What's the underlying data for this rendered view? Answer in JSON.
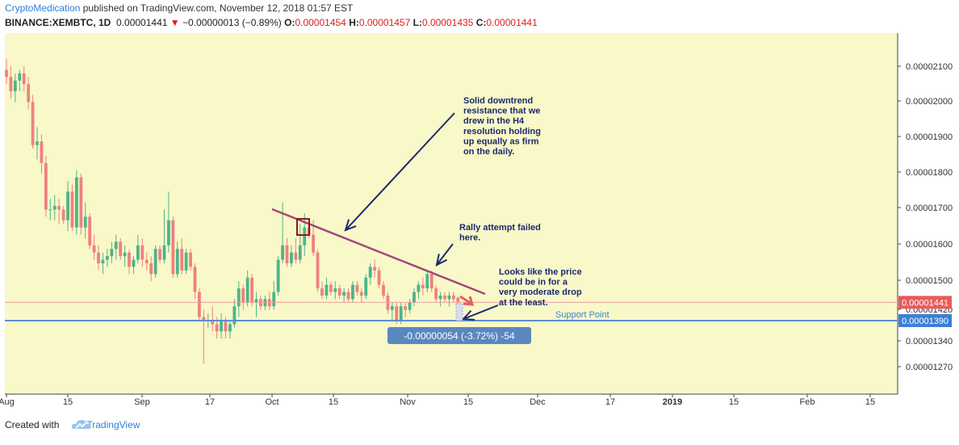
{
  "header": {
    "author": "CryptoMedication",
    "published": " published on TradingView.com, November 12, 2018 01:57 EST",
    "symbol": "BINANCE:XEMBTC, 1D",
    "last": "0.00001441",
    "change": "−0.00000013 (−0.89%)",
    "o_label": "O:",
    "o_value": "0.00001454",
    "h_label": "H:",
    "h_value": "0.00001457",
    "l_label": "L:",
    "l_value": "0.00001435",
    "c_label": "C:",
    "c_value": "0.00001441"
  },
  "footer": {
    "created_with": "Created with",
    "brand": "TradingView"
  },
  "colors": {
    "background": "#f8f8c8",
    "up": "#4fb38a",
    "down": "#f08080",
    "trendline": "#a04a78",
    "support": "#5a8fd0",
    "annotation": "#1a2a6e",
    "price_tag": "#e85b5b",
    "support_tag": "#3d7fd4",
    "measure_box": "#5b87c0"
  },
  "chart_data": {
    "type": "candlestick",
    "x_ticks": [
      "Aug",
      "15",
      "Sep",
      "17",
      "Oct",
      "15",
      "Nov",
      "15",
      "Dec",
      "17",
      "2019",
      "15",
      "Feb",
      "15"
    ],
    "y_ticks": [
      "0.00002100",
      "0.00002000",
      "0.00001900",
      "0.00001800",
      "0.00001700",
      "0.00001600",
      "0.00001500",
      "0.00001420",
      "0.00001340",
      "0.00001270"
    ],
    "ylim": [
      1.23e-05,
      2.19e-05
    ],
    "candles": [
      {
        "d": "2018-08-01",
        "o": 2.09e-05,
        "h": 2.12e-05,
        "l": 2.05e-05,
        "c": 2.07e-05
      },
      {
        "d": "2018-08-02",
        "o": 2.07e-05,
        "h": 2.1e-05,
        "l": 2.01e-05,
        "c": 2.03e-05
      },
      {
        "d": "2018-08-03",
        "o": 2.03e-05,
        "h": 2.08e-05,
        "l": 2e-05,
        "c": 2.06e-05
      },
      {
        "d": "2018-08-04",
        "o": 2.06e-05,
        "h": 2.09e-05,
        "l": 2.03e-05,
        "c": 2.08e-05
      },
      {
        "d": "2018-08-05",
        "o": 2.08e-05,
        "h": 2.1e-05,
        "l": 2.03e-05,
        "c": 2.05e-05
      },
      {
        "d": "2018-08-06",
        "o": 2.05e-05,
        "h": 2.07e-05,
        "l": 1.98e-05,
        "c": 2e-05
      },
      {
        "d": "2018-08-07",
        "o": 2e-05,
        "h": 2.02e-05,
        "l": 1.87e-05,
        "c": 1.88e-05
      },
      {
        "d": "2018-08-08",
        "o": 1.88e-05,
        "h": 1.93e-05,
        "l": 1.84e-05,
        "c": 1.89e-05
      },
      {
        "d": "2018-08-09",
        "o": 1.89e-05,
        "h": 1.91e-05,
        "l": 1.8e-05,
        "c": 1.83e-05
      },
      {
        "d": "2018-08-10",
        "o": 1.83e-05,
        "h": 1.85e-05,
        "l": 1.68e-05,
        "c": 1.7e-05
      },
      {
        "d": "2018-08-11",
        "o": 1.7e-05,
        "h": 1.73e-05,
        "l": 1.67e-05,
        "c": 1.7e-05
      },
      {
        "d": "2018-08-12",
        "o": 1.7e-05,
        "h": 1.74e-05,
        "l": 1.67e-05,
        "c": 1.71e-05
      },
      {
        "d": "2018-08-13",
        "o": 1.71e-05,
        "h": 1.73e-05,
        "l": 1.66e-05,
        "c": 1.7e-05
      },
      {
        "d": "2018-08-14",
        "o": 1.7e-05,
        "h": 1.71e-05,
        "l": 1.66e-05,
        "c": 1.67e-05
      },
      {
        "d": "2018-08-15",
        "o": 1.67e-05,
        "h": 1.78e-05,
        "l": 1.64e-05,
        "c": 1.75e-05
      },
      {
        "d": "2018-08-16",
        "o": 1.75e-05,
        "h": 1.77e-05,
        "l": 1.64e-05,
        "c": 1.65e-05
      },
      {
        "d": "2018-08-17",
        "o": 1.65e-05,
        "h": 1.81e-05,
        "l": 1.63e-05,
        "c": 1.79e-05
      },
      {
        "d": "2018-08-18",
        "o": 1.79e-05,
        "h": 1.8e-05,
        "l": 1.63e-05,
        "c": 1.65e-05
      },
      {
        "d": "2018-08-19",
        "o": 1.65e-05,
        "h": 1.72e-05,
        "l": 1.62e-05,
        "c": 1.68e-05
      },
      {
        "d": "2018-08-20",
        "o": 1.68e-05,
        "h": 1.69e-05,
        "l": 1.59e-05,
        "c": 1.6e-05
      },
      {
        "d": "2018-08-21",
        "o": 1.6e-05,
        "h": 1.63e-05,
        "l": 1.56e-05,
        "c": 1.58e-05
      },
      {
        "d": "2018-08-22",
        "o": 1.58e-05,
        "h": 1.6e-05,
        "l": 1.53e-05,
        "c": 1.55e-05
      },
      {
        "d": "2018-08-23",
        "o": 1.55e-05,
        "h": 1.58e-05,
        "l": 1.52e-05,
        "c": 1.56e-05
      },
      {
        "d": "2018-08-24",
        "o": 1.56e-05,
        "h": 1.59e-05,
        "l": 1.54e-05,
        "c": 1.57e-05
      },
      {
        "d": "2018-08-25",
        "o": 1.57e-05,
        "h": 1.61e-05,
        "l": 1.55e-05,
        "c": 1.59e-05
      },
      {
        "d": "2018-08-26",
        "o": 1.59e-05,
        "h": 1.63e-05,
        "l": 1.56e-05,
        "c": 1.61e-05
      },
      {
        "d": "2018-08-27",
        "o": 1.61e-05,
        "h": 1.62e-05,
        "l": 1.56e-05,
        "c": 1.57e-05
      },
      {
        "d": "2018-08-28",
        "o": 1.57e-05,
        "h": 1.6e-05,
        "l": 1.54e-05,
        "c": 1.58e-05
      },
      {
        "d": "2018-08-29",
        "o": 1.58e-05,
        "h": 1.59e-05,
        "l": 1.52e-05,
        "c": 1.54e-05
      },
      {
        "d": "2018-08-30",
        "o": 1.54e-05,
        "h": 1.57e-05,
        "l": 1.52e-05,
        "c": 1.56e-05
      },
      {
        "d": "2018-08-31",
        "o": 1.56e-05,
        "h": 1.63e-05,
        "l": 1.55e-05,
        "c": 1.6e-05
      },
      {
        "d": "2018-09-01",
        "o": 1.6e-05,
        "h": 1.62e-05,
        "l": 1.54e-05,
        "c": 1.56e-05
      },
      {
        "d": "2018-09-02",
        "o": 1.56e-05,
        "h": 1.58e-05,
        "l": 1.53e-05,
        "c": 1.55e-05
      },
      {
        "d": "2018-09-03",
        "o": 1.55e-05,
        "h": 1.57e-05,
        "l": 1.5e-05,
        "c": 1.52e-05
      },
      {
        "d": "2018-09-04",
        "o": 1.52e-05,
        "h": 1.6e-05,
        "l": 1.51e-05,
        "c": 1.59e-05
      },
      {
        "d": "2018-09-05",
        "o": 1.59e-05,
        "h": 1.6e-05,
        "l": 1.55e-05,
        "c": 1.56e-05
      },
      {
        "d": "2018-09-06",
        "o": 1.56e-05,
        "h": 1.7e-05,
        "l": 1.55e-05,
        "c": 1.6e-05
      },
      {
        "d": "2018-09-07",
        "o": 1.6e-05,
        "h": 1.75e-05,
        "l": 1.58e-05,
        "c": 1.67e-05
      },
      {
        "d": "2018-09-08",
        "o": 1.67e-05,
        "h": 1.68e-05,
        "l": 1.51e-05,
        "c": 1.52e-05
      },
      {
        "d": "2018-09-09",
        "o": 1.52e-05,
        "h": 1.61e-05,
        "l": 1.51e-05,
        "c": 1.59e-05
      },
      {
        "d": "2018-09-10",
        "o": 1.59e-05,
        "h": 1.62e-05,
        "l": 1.52e-05,
        "c": 1.53e-05
      },
      {
        "d": "2018-09-11",
        "o": 1.53e-05,
        "h": 1.59e-05,
        "l": 1.52e-05,
        "c": 1.58e-05
      },
      {
        "d": "2018-09-12",
        "o": 1.58e-05,
        "h": 1.59e-05,
        "l": 1.53e-05,
        "c": 1.54e-05
      },
      {
        "d": "2018-09-13",
        "o": 1.54e-05,
        "h": 1.55e-05,
        "l": 1.45e-05,
        "c": 1.47e-05
      },
      {
        "d": "2018-09-14",
        "o": 1.47e-05,
        "h": 1.48e-05,
        "l": 1.39e-05,
        "c": 1.4e-05
      },
      {
        "d": "2018-09-15",
        "o": 1.4e-05,
        "h": 1.42e-05,
        "l": 1.27e-05,
        "c": 1.39e-05
      },
      {
        "d": "2018-09-16",
        "o": 1.39e-05,
        "h": 1.41e-05,
        "l": 1.37e-05,
        "c": 1.39e-05
      },
      {
        "d": "2018-09-17",
        "o": 1.39e-05,
        "h": 1.43e-05,
        "l": 1.36e-05,
        "c": 1.38e-05
      },
      {
        "d": "2018-09-18",
        "o": 1.38e-05,
        "h": 1.4e-05,
        "l": 1.34e-05,
        "c": 1.36e-05
      },
      {
        "d": "2018-09-19",
        "o": 1.36e-05,
        "h": 1.41e-05,
        "l": 1.34e-05,
        "c": 1.39e-05
      },
      {
        "d": "2018-09-20",
        "o": 1.39e-05,
        "h": 1.4e-05,
        "l": 1.34e-05,
        "c": 1.36e-05
      },
      {
        "d": "2018-09-21",
        "o": 1.36e-05,
        "h": 1.39e-05,
        "l": 1.34e-05,
        "c": 1.38e-05
      },
      {
        "d": "2018-09-22",
        "o": 1.38e-05,
        "h": 1.45e-05,
        "l": 1.37e-05,
        "c": 1.43e-05
      },
      {
        "d": "2018-09-23",
        "o": 1.43e-05,
        "h": 1.5e-05,
        "l": 1.4e-05,
        "c": 1.48e-05
      },
      {
        "d": "2018-09-24",
        "o": 1.48e-05,
        "h": 1.49e-05,
        "l": 1.42e-05,
        "c": 1.44e-05
      },
      {
        "d": "2018-09-25",
        "o": 1.44e-05,
        "h": 1.53e-05,
        "l": 1.43e-05,
        "c": 1.51e-05
      },
      {
        "d": "2018-09-26",
        "o": 1.51e-05,
        "h": 1.52e-05,
        "l": 1.43e-05,
        "c": 1.44e-05
      },
      {
        "d": "2018-09-27",
        "o": 1.44e-05,
        "h": 1.47e-05,
        "l": 1.4e-05,
        "c": 1.45e-05
      },
      {
        "d": "2018-09-28",
        "o": 1.45e-05,
        "h": 1.46e-05,
        "l": 1.42e-05,
        "c": 1.43e-05
      },
      {
        "d": "2018-09-29",
        "o": 1.43e-05,
        "h": 1.46e-05,
        "l": 1.42e-05,
        "c": 1.45e-05
      },
      {
        "d": "2018-09-30",
        "o": 1.45e-05,
        "h": 1.47e-05,
        "l": 1.42e-05,
        "c": 1.43e-05
      },
      {
        "d": "2018-10-01",
        "o": 1.43e-05,
        "h": 1.5e-05,
        "l": 1.42e-05,
        "c": 1.47e-05
      },
      {
        "d": "2018-10-02",
        "o": 1.47e-05,
        "h": 1.57e-05,
        "l": 1.46e-05,
        "c": 1.56e-05
      },
      {
        "d": "2018-10-03",
        "o": 1.56e-05,
        "h": 1.72e-05,
        "l": 1.55e-05,
        "c": 1.6e-05
      },
      {
        "d": "2018-10-04",
        "o": 1.6e-05,
        "h": 1.62e-05,
        "l": 1.54e-05,
        "c": 1.55e-05
      },
      {
        "d": "2018-10-05",
        "o": 1.55e-05,
        "h": 1.6e-05,
        "l": 1.54e-05,
        "c": 1.58e-05
      },
      {
        "d": "2018-10-06",
        "o": 1.58e-05,
        "h": 1.62e-05,
        "l": 1.55e-05,
        "c": 1.56e-05
      },
      {
        "d": "2018-10-07",
        "o": 1.56e-05,
        "h": 1.66e-05,
        "l": 1.55e-05,
        "c": 1.6e-05
      },
      {
        "d": "2018-10-08",
        "o": 1.6e-05,
        "h": 1.69e-05,
        "l": 1.57e-05,
        "c": 1.65e-05
      },
      {
        "d": "2018-10-09",
        "o": 1.65e-05,
        "h": 1.67e-05,
        "l": 1.62e-05,
        "c": 1.63e-05
      },
      {
        "d": "2018-10-10",
        "o": 1.63e-05,
        "h": 1.67e-05,
        "l": 1.57e-05,
        "c": 1.58e-05
      },
      {
        "d": "2018-10-11",
        "o": 1.58e-05,
        "h": 1.59e-05,
        "l": 1.47e-05,
        "c": 1.48e-05
      },
      {
        "d": "2018-10-12",
        "o": 1.48e-05,
        "h": 1.5e-05,
        "l": 1.45e-05,
        "c": 1.46e-05
      },
      {
        "d": "2018-10-13",
        "o": 1.46e-05,
        "h": 1.51e-05,
        "l": 1.45e-05,
        "c": 1.49e-05
      },
      {
        "d": "2018-10-14",
        "o": 1.49e-05,
        "h": 1.5e-05,
        "l": 1.46e-05,
        "c": 1.47e-05
      },
      {
        "d": "2018-10-15",
        "o": 1.47e-05,
        "h": 1.5e-05,
        "l": 1.45e-05,
        "c": 1.48e-05
      },
      {
        "d": "2018-10-16",
        "o": 1.48e-05,
        "h": 1.49e-05,
        "l": 1.45e-05,
        "c": 1.46e-05
      },
      {
        "d": "2018-10-17",
        "o": 1.46e-05,
        "h": 1.48e-05,
        "l": 1.44e-05,
        "c": 1.47e-05
      },
      {
        "d": "2018-10-18",
        "o": 1.47e-05,
        "h": 1.48e-05,
        "l": 1.44e-05,
        "c": 1.45e-05
      },
      {
        "d": "2018-10-19",
        "o": 1.45e-05,
        "h": 1.5e-05,
        "l": 1.44e-05,
        "c": 1.49e-05
      },
      {
        "d": "2018-10-20",
        "o": 1.49e-05,
        "h": 1.5e-05,
        "l": 1.46e-05,
        "c": 1.47e-05
      },
      {
        "d": "2018-10-21",
        "o": 1.47e-05,
        "h": 1.48e-05,
        "l": 1.44e-05,
        "c": 1.46e-05
      },
      {
        "d": "2018-10-22",
        "o": 1.46e-05,
        "h": 1.52e-05,
        "l": 1.45e-05,
        "c": 1.51e-05
      },
      {
        "d": "2018-10-23",
        "o": 1.51e-05,
        "h": 1.55e-05,
        "l": 1.49e-05,
        "c": 1.54e-05
      },
      {
        "d": "2018-10-24",
        "o": 1.54e-05,
        "h": 1.56e-05,
        "l": 1.51e-05,
        "c": 1.53e-05
      },
      {
        "d": "2018-10-25",
        "o": 1.53e-05,
        "h": 1.54e-05,
        "l": 1.48e-05,
        "c": 1.49e-05
      },
      {
        "d": "2018-10-26",
        "o": 1.49e-05,
        "h": 1.5e-05,
        "l": 1.45e-05,
        "c": 1.46e-05
      },
      {
        "d": "2018-10-27",
        "o": 1.46e-05,
        "h": 1.47e-05,
        "l": 1.41e-05,
        "c": 1.42e-05
      },
      {
        "d": "2018-10-28",
        "o": 1.42e-05,
        "h": 1.44e-05,
        "l": 1.39e-05,
        "c": 1.43e-05
      },
      {
        "d": "2018-10-29",
        "o": 1.43e-05,
        "h": 1.44e-05,
        "l": 1.38e-05,
        "c": 1.39e-05
      },
      {
        "d": "2018-10-30",
        "o": 1.39e-05,
        "h": 1.44e-05,
        "l": 1.38e-05,
        "c": 1.43e-05
      },
      {
        "d": "2018-10-31",
        "o": 1.43e-05,
        "h": 1.44e-05,
        "l": 1.4e-05,
        "c": 1.42e-05
      },
      {
        "d": "2018-11-01",
        "o": 1.42e-05,
        "h": 1.45e-05,
        "l": 1.41e-05,
        "c": 1.44e-05
      },
      {
        "d": "2018-11-02",
        "o": 1.44e-05,
        "h": 1.48e-05,
        "l": 1.43e-05,
        "c": 1.47e-05
      },
      {
        "d": "2018-11-03",
        "o": 1.47e-05,
        "h": 1.5e-05,
        "l": 1.45e-05,
        "c": 1.49e-05
      },
      {
        "d": "2018-11-04",
        "o": 1.49e-05,
        "h": 1.51e-05,
        "l": 1.46e-05,
        "c": 1.48e-05
      },
      {
        "d": "2018-11-05",
        "o": 1.48e-05,
        "h": 1.53e-05,
        "l": 1.47e-05,
        "c": 1.52e-05
      },
      {
        "d": "2018-11-06",
        "o": 1.52e-05,
        "h": 1.53e-05,
        "l": 1.47e-05,
        "c": 1.48e-05
      },
      {
        "d": "2018-11-07",
        "o": 1.48e-05,
        "h": 1.49e-05,
        "l": 1.44e-05,
        "c": 1.45e-05
      },
      {
        "d": "2018-11-08",
        "o": 1.45e-05,
        "h": 1.47e-05,
        "l": 1.43e-05,
        "c": 1.46e-05
      },
      {
        "d": "2018-11-09",
        "o": 1.46e-05,
        "h": 1.47e-05,
        "l": 1.44e-05,
        "c": 1.45e-05
      },
      {
        "d": "2018-11-10",
        "o": 1.45e-05,
        "h": 1.47e-05,
        "l": 1.43e-05,
        "c": 1.46e-05
      },
      {
        "d": "2018-11-11",
        "o": 1.46e-05,
        "h": 1.47e-05,
        "l": 1.44e-05,
        "c": 1.45e-05
      },
      {
        "d": "2018-11-12",
        "o": 1.454e-05,
        "h": 1.457e-05,
        "l": 1.435e-05,
        "c": 1.441e-05
      }
    ],
    "price_tags": {
      "last": "0.00001441",
      "support": "0.00001390"
    },
    "annotations": {
      "note1": [
        "Solid downtrend",
        "resistance that we",
        "drew in the H4",
        "resolution holding",
        "up equally as firm",
        "on the daily."
      ],
      "note2": [
        "Rally attempt failed",
        "here."
      ],
      "note3": [
        "Looks like the price",
        "could be in for a",
        "very moderate drop",
        "at the least."
      ],
      "support_label": "Support Point",
      "measure": "-0.00000054 (-3.72%) -54"
    }
  }
}
